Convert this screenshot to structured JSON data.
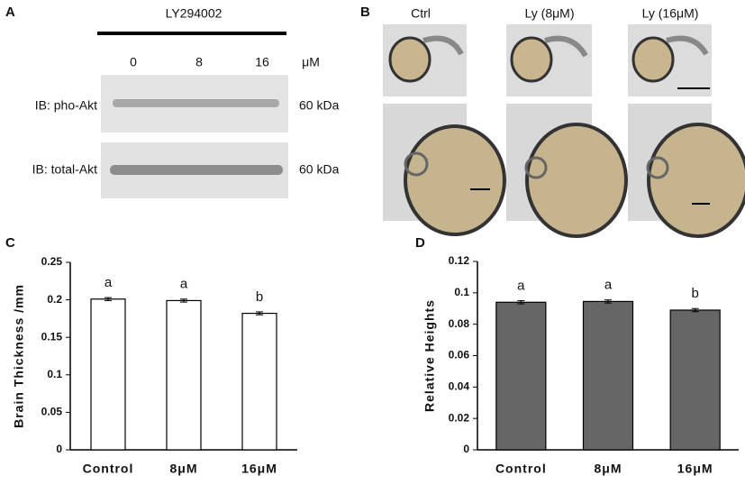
{
  "panel_a": {
    "letter": "A",
    "treatment": "LY294002",
    "doses": [
      "0",
      "8",
      "16"
    ],
    "unit": "μM",
    "rows": [
      {
        "label": "IB: pho-Akt",
        "size": "60 kDa"
      },
      {
        "label": "IB: total-Akt",
        "size": "60 kDa"
      }
    ]
  },
  "panel_b": {
    "letter": "B",
    "columns": [
      "Ctrl",
      "Ly (8μM)",
      "Ly (16μM)"
    ]
  },
  "chart_data": [
    {
      "type": "bar",
      "panel": "C",
      "ylabel": "Brain Thickness /mm",
      "categories": [
        "Control",
        "8μM",
        "16μM"
      ],
      "values": [
        0.201,
        0.199,
        0.182
      ],
      "errors": [
        0.002,
        0.002,
        0.002
      ],
      "annotations": [
        "a",
        "a",
        "b"
      ],
      "color": "#ffffff",
      "ylim": [
        0,
        0.25
      ],
      "yticks": [
        0,
        0.05,
        0.1,
        0.15,
        0.2,
        0.25
      ]
    },
    {
      "type": "bar",
      "panel": "D",
      "ylabel": "Relative Heights",
      "categories": [
        "Control",
        "8μM",
        "16μM"
      ],
      "values": [
        0.094,
        0.0945,
        0.089
      ],
      "errors": [
        0.001,
        0.001,
        0.001
      ],
      "annotations": [
        "a",
        "a",
        "b"
      ],
      "color": "#666666",
      "ylim": [
        0,
        0.12
      ],
      "yticks": [
        0,
        0.02,
        0.04,
        0.06,
        0.08,
        0.1,
        0.12
      ]
    }
  ]
}
